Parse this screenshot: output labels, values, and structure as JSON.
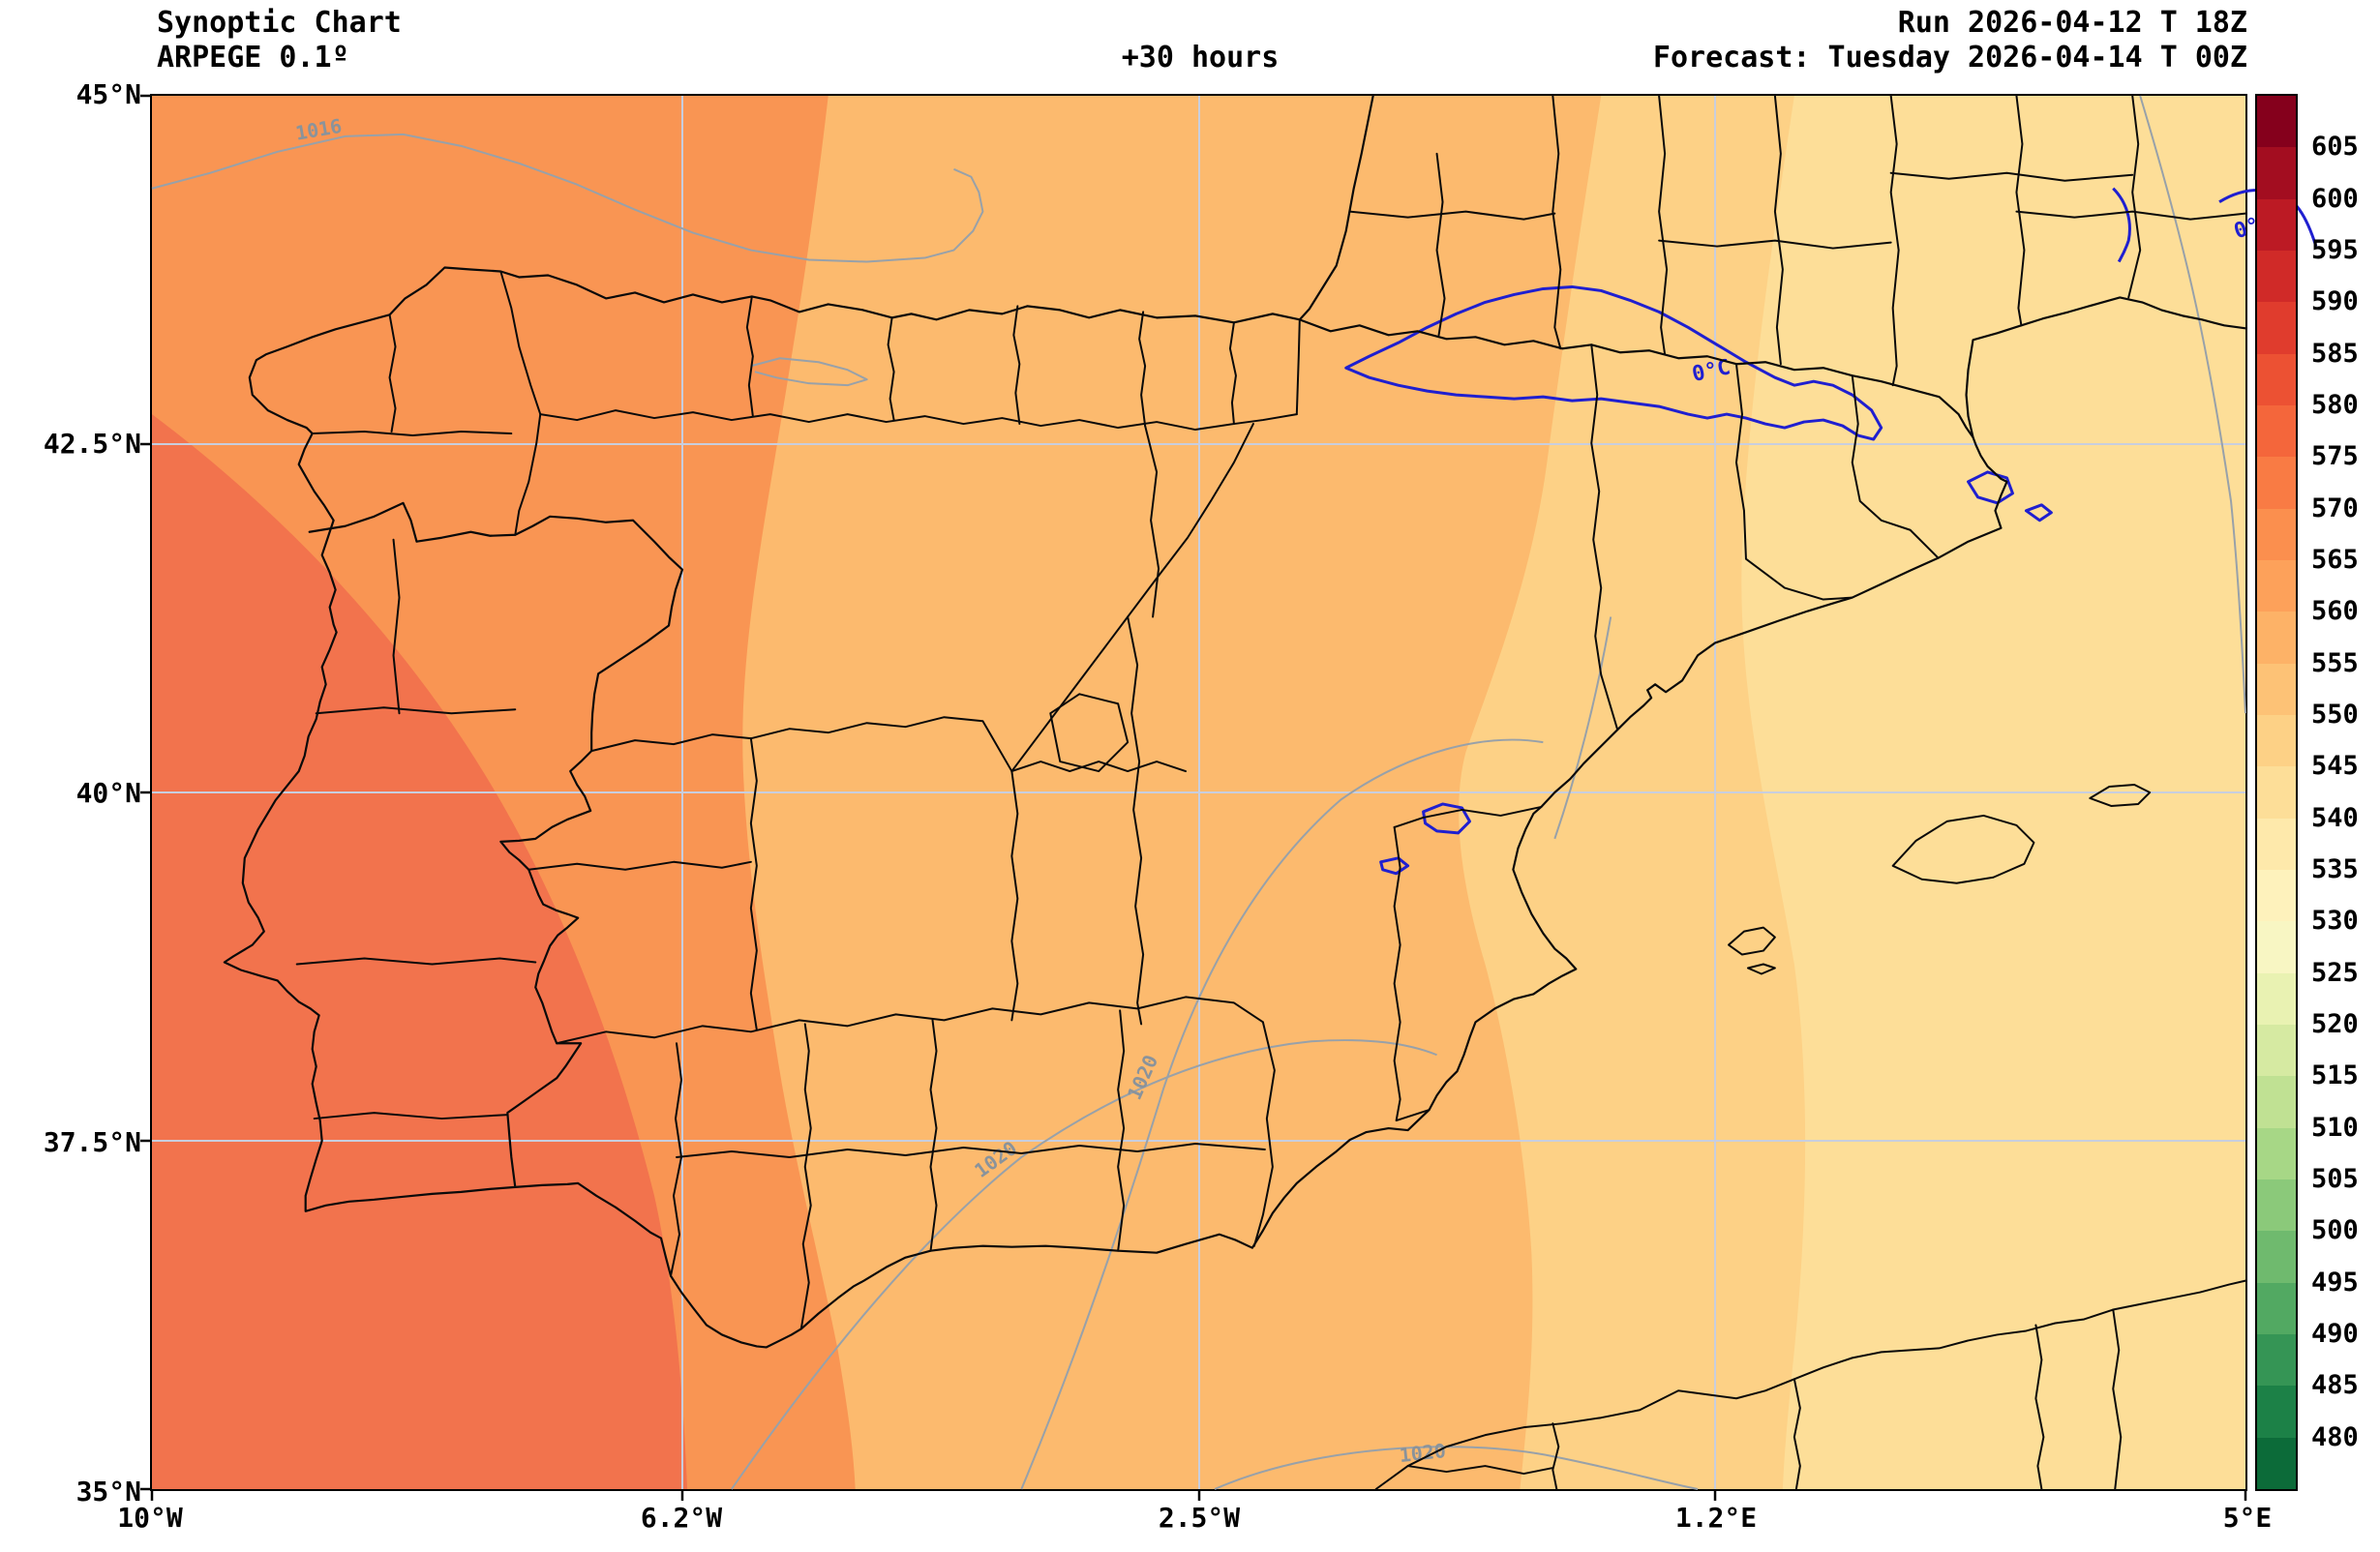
{
  "header": {
    "title_line1": "Synoptic Chart",
    "title_line2": "ARPEGE 0.1º",
    "lead_time": "+30 hours",
    "run_line": "Run 2026-04-12 T 18Z",
    "forecast_line": "Forecast: Tuesday 2026-04-14 T 00Z"
  },
  "axes": {
    "lat_ticks": [
      "45°N",
      "42.5°N",
      "40°N",
      "37.5°N",
      "35°N"
    ],
    "lon_ticks": [
      "10°W",
      "6.2°W",
      "2.5°W",
      "1.2°E",
      "5°E"
    ]
  },
  "colorbar": {
    "tick_values": [
      605,
      600,
      595,
      590,
      585,
      580,
      575,
      570,
      565,
      560,
      555,
      550,
      545,
      540,
      535,
      530,
      525,
      520,
      515,
      510,
      505,
      500,
      495,
      490,
      485,
      480
    ],
    "band_colors": [
      "#85001c",
      "#a30d20",
      "#bc1a24",
      "#d02a28",
      "#e03c2d",
      "#ec5133",
      "#f4663b",
      "#f97b44",
      "#fb8f4e",
      "#fda15a",
      "#fdb267",
      "#fdc276",
      "#fdd186",
      "#fdde98",
      "#fee9ab",
      "#fef2bc",
      "#f8f6c3",
      "#e9f2b2",
      "#d6eaa2",
      "#c0e193",
      "#a7d786",
      "#8bc97a",
      "#6fba6e",
      "#52a962",
      "#359555",
      "#1c8147",
      "#0c6b39"
    ]
  },
  "contour_labels": {
    "zero_isotherm": "0°C",
    "isobar_1016": "1016",
    "isobar_1020": "1020"
  },
  "chart_data": {
    "type": "heatmap",
    "title": "Synoptic Chart",
    "model": "ARPEGE 0.1º",
    "run": "2026-04-12 T 18Z",
    "forecast_valid": "Tuesday 2026-04-14 T 00Z",
    "lead_time_hours": 30,
    "region": "Iberian Peninsula and western Mediterranean",
    "lon_range_deg": [
      -10,
      5
    ],
    "lat_range_deg": [
      35,
      45
    ],
    "gridlines": true,
    "colorbar_position": "right",
    "colorbar_scale": {
      "min": 480,
      "max": 605,
      "step": 5
    },
    "shaded_field_bands_west_to_east": [
      {
        "approx_value": 572,
        "color": "#f2734d",
        "extent": "far southwest Atlantic off Portugal"
      },
      {
        "approx_value": 566,
        "color": "#f99553",
        "extent": "western Portugal band"
      },
      {
        "approx_value": 558,
        "color": "#fcba6e",
        "extent": "central Iberia"
      },
      {
        "approx_value": 548,
        "color": "#fdd186",
        "extent": "eastern Iberia and coast"
      },
      {
        "approx_value": 543,
        "color": "#fdde98",
        "extent": "far eastern Mediterranean edge"
      }
    ],
    "overlays": {
      "zero_deg_isotherm_locations": [
        "Pyrenees belt",
        "small pockets near Teruel",
        "northeast corner over France"
      ],
      "isobars_hpa": [
        1016,
        1020
      ]
    }
  }
}
